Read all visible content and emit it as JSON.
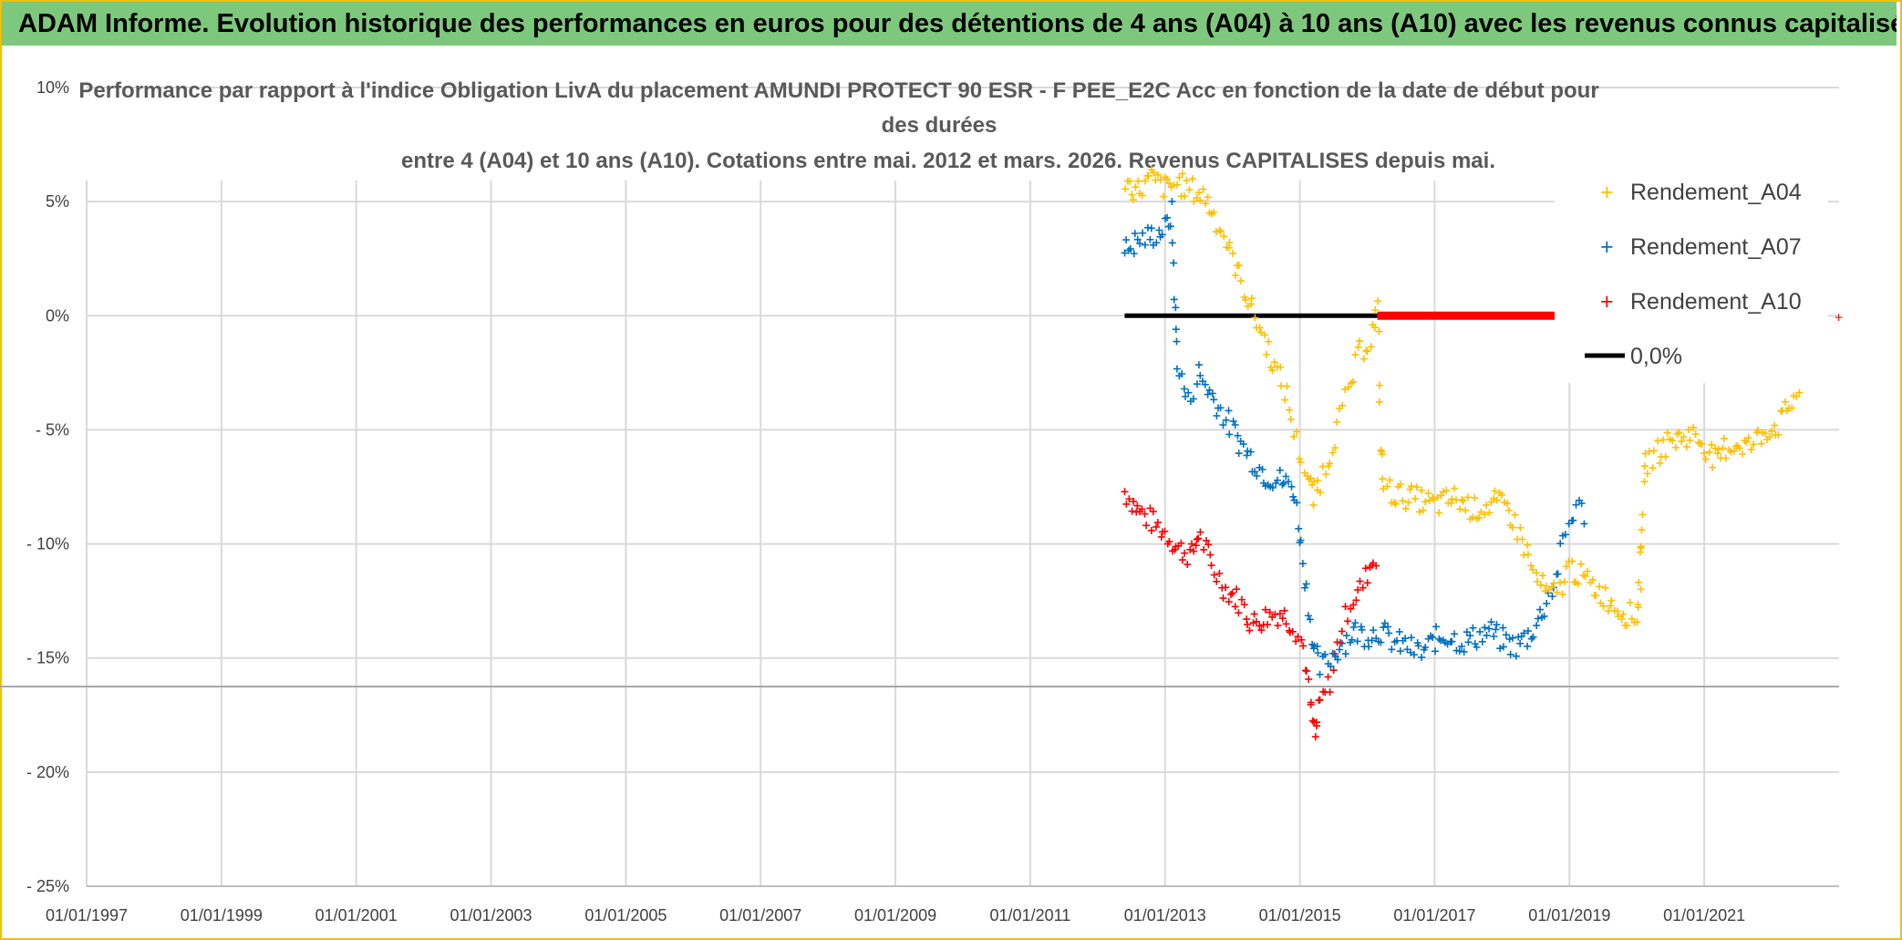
{
  "banner": {
    "text": "ADAM Informe. Evolution historique des performances en euros pour des détentions de 4 ans (A04) à 10 ans (A10) avec les revenus connus capitalisés"
  },
  "colors": {
    "banner_bg": "#7dc87d",
    "frame": "#f0c000",
    "A04": "#ffc000",
    "A07": "#0070c0",
    "A10": "#ff0000",
    "zero": "#000000",
    "grid": "#d9d9d9"
  },
  "chart_data": {
    "type": "scatter",
    "title": [
      "Performance par rapport à l'indice Obligation LivA  du placement AMUNDI PROTECT 90 ESR - F PEE_E2C Acc en fonction de la date de début pour",
      "des durées",
      "entre 4 (A04) et 10 ans (A10). Cotations entre mai. 2012 et mars. 2026. Revenus CAPITALISES depuis mai."
    ],
    "x_tick_labels": [
      "01/01/1997",
      "01/01/1999",
      "01/01/2001",
      "01/01/2003",
      "01/01/2005",
      "01/01/2007",
      "01/01/2009",
      "01/01/2011",
      "01/01/2013",
      "01/01/2015",
      "01/01/2017",
      "01/01/2019",
      "01/01/2021"
    ],
    "x_range": [
      1997.0,
      2023.0
    ],
    "y_tick_labels": [
      "10%",
      "5%",
      "0%",
      "- 5%",
      "- 10%",
      "- 15%",
      "- 20%",
      "- 25%"
    ],
    "y_ticks": [
      10,
      5,
      0,
      -5,
      -10,
      -15,
      -20,
      -25
    ],
    "ylim": [
      -25,
      10
    ],
    "legend": [
      "Rendement_A04",
      "Rendement_A07",
      "Rendement_A10",
      "0,0%"
    ],
    "legend_position": "top-right",
    "series": [
      {
        "name": "Rendement_A04",
        "points": [
          [
            2012.4,
            5.8
          ],
          [
            2012.6,
            5.5
          ],
          [
            2012.8,
            6.0
          ],
          [
            2013.0,
            5.6
          ],
          [
            2013.2,
            5.8
          ],
          [
            2013.4,
            5.5
          ],
          [
            2013.6,
            5.2
          ],
          [
            2013.8,
            4.0
          ],
          [
            2014.0,
            2.5
          ],
          [
            2014.2,
            1.0
          ],
          [
            2014.4,
            -0.5
          ],
          [
            2014.6,
            -2.0
          ],
          [
            2014.8,
            -3.5
          ],
          [
            2014.95,
            -5.5
          ],
          [
            2015.1,
            -7.0
          ],
          [
            2015.2,
            -8.0
          ],
          [
            2015.3,
            -7.2
          ],
          [
            2015.45,
            -6.0
          ],
          [
            2015.6,
            -4.5
          ],
          [
            2015.75,
            -3.0
          ],
          [
            2015.9,
            -1.5
          ],
          [
            2016.05,
            -1.0
          ],
          [
            2016.15,
            0.3
          ],
          [
            2016.2,
            -5.5
          ],
          [
            2016.25,
            -7.5
          ],
          [
            2016.4,
            -7.8
          ],
          [
            2016.7,
            -8.0
          ],
          [
            2017.0,
            -8.3
          ],
          [
            2017.3,
            -8.0
          ],
          [
            2017.6,
            -8.5
          ],
          [
            2017.9,
            -8.2
          ],
          [
            2018.1,
            -8.5
          ],
          [
            2018.3,
            -9.8
          ],
          [
            2018.5,
            -11.5
          ],
          [
            2018.7,
            -12.3
          ],
          [
            2018.85,
            -12.0
          ],
          [
            2019.0,
            -11.0
          ],
          [
            2019.2,
            -11.5
          ],
          [
            2019.4,
            -12.0
          ],
          [
            2019.6,
            -12.5
          ],
          [
            2019.8,
            -13.0
          ],
          [
            2020.0,
            -13.2
          ],
          [
            2020.05,
            -11.5
          ],
          [
            2020.08,
            -9.0
          ],
          [
            2020.12,
            -6.5
          ],
          [
            2020.3,
            -6.0
          ],
          [
            2020.5,
            -5.5
          ],
          [
            2020.8,
            -5.2
          ],
          [
            2021.0,
            -5.6
          ],
          [
            2021.2,
            -6.5
          ],
          [
            2021.3,
            -5.8
          ],
          [
            2021.5,
            -5.6
          ],
          [
            2021.7,
            -5.7
          ],
          [
            2021.9,
            -5.0
          ],
          [
            2022.1,
            -4.8
          ],
          [
            2022.3,
            -3.8
          ],
          [
            2022.45,
            -3.0
          ]
        ]
      },
      {
        "name": "Rendement_A07",
        "points": [
          [
            2012.4,
            2.8
          ],
          [
            2012.6,
            3.3
          ],
          [
            2012.8,
            3.5
          ],
          [
            2013.0,
            3.8
          ],
          [
            2013.1,
            4.5
          ],
          [
            2013.15,
            0.0
          ],
          [
            2013.2,
            -2.5
          ],
          [
            2013.35,
            -3.8
          ],
          [
            2013.5,
            -2.5
          ],
          [
            2013.7,
            -3.5
          ],
          [
            2013.9,
            -4.5
          ],
          [
            2014.1,
            -5.5
          ],
          [
            2014.3,
            -6.3
          ],
          [
            2014.5,
            -7.0
          ],
          [
            2014.7,
            -7.2
          ],
          [
            2014.9,
            -7.5
          ],
          [
            2015.0,
            -9.5
          ],
          [
            2015.1,
            -12.0
          ],
          [
            2015.2,
            -14.5
          ],
          [
            2015.3,
            -15.5
          ],
          [
            2015.45,
            -15.0
          ],
          [
            2015.6,
            -14.5
          ],
          [
            2015.8,
            -13.8
          ],
          [
            2016.0,
            -14.0
          ],
          [
            2016.2,
            -13.8
          ],
          [
            2016.4,
            -14.3
          ],
          [
            2016.6,
            -14.5
          ],
          [
            2016.8,
            -14.8
          ],
          [
            2017.0,
            -14.2
          ],
          [
            2017.2,
            -14.0
          ],
          [
            2017.4,
            -14.3
          ],
          [
            2017.6,
            -14.1
          ],
          [
            2017.8,
            -13.8
          ],
          [
            2018.0,
            -14.2
          ],
          [
            2018.2,
            -14.5
          ],
          [
            2018.4,
            -14.0
          ],
          [
            2018.6,
            -13.0
          ],
          [
            2018.8,
            -11.5
          ],
          [
            2018.95,
            -9.5
          ],
          [
            2019.1,
            -8.3
          ],
          [
            2019.25,
            -8.8
          ]
        ]
      },
      {
        "name": "Rendement_A10",
        "points": [
          [
            2012.4,
            -7.7
          ],
          [
            2012.6,
            -8.5
          ],
          [
            2012.8,
            -9.0
          ],
          [
            2013.0,
            -9.5
          ],
          [
            2013.2,
            -10.2
          ],
          [
            2013.4,
            -10.5
          ],
          [
            2013.5,
            -9.5
          ],
          [
            2013.7,
            -11.0
          ],
          [
            2013.9,
            -12.0
          ],
          [
            2014.1,
            -12.5
          ],
          [
            2014.3,
            -13.5
          ],
          [
            2014.5,
            -13.2
          ],
          [
            2014.7,
            -13.0
          ],
          [
            2014.9,
            -13.5
          ],
          [
            2015.05,
            -14.5
          ],
          [
            2015.15,
            -17.0
          ],
          [
            2015.22,
            -18.5
          ],
          [
            2015.3,
            -17.0
          ],
          [
            2015.45,
            -16.0
          ],
          [
            2015.6,
            -14.0
          ],
          [
            2015.75,
            -12.5
          ],
          [
            2015.9,
            -12.0
          ],
          [
            2016.05,
            -11.0
          ],
          [
            2016.15,
            -10.3
          ]
        ]
      }
    ],
    "zero_line": {
      "value": 0,
      "start": 2012.4,
      "end": 2023.0
    }
  }
}
